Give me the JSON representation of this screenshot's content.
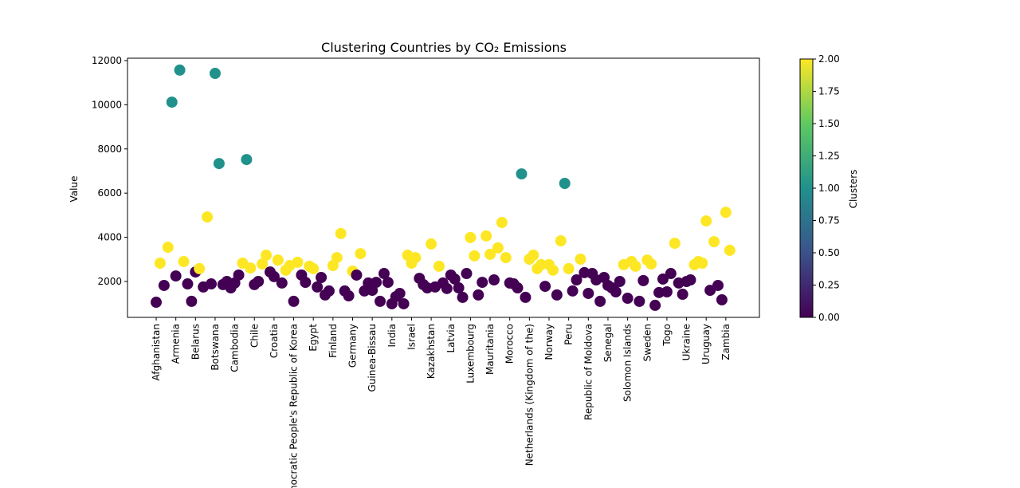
{
  "chart_data": {
    "type": "scatter",
    "title": "Clustering Countries by CO₂ Emissions",
    "y_label": "Value",
    "colorbar_label": "Clusters",
    "categories": [
      "Afghanistan",
      null,
      null,
      null,
      null,
      "Armenia",
      null,
      null,
      null,
      null,
      "Belarus",
      null,
      null,
      null,
      null,
      "Botswana",
      null,
      null,
      null,
      null,
      "Cambodia",
      null,
      null,
      null,
      null,
      "Chile",
      null,
      null,
      null,
      null,
      "Croatia",
      null,
      null,
      null,
      null,
      "Democratic People's Republic of Korea",
      null,
      null,
      null,
      null,
      "Egypt",
      null,
      null,
      null,
      null,
      "Finland",
      null,
      null,
      null,
      null,
      "Germany",
      null,
      null,
      null,
      null,
      "Guinea-Bissau",
      null,
      null,
      null,
      null,
      "India",
      null,
      null,
      null,
      null,
      "Israel",
      null,
      null,
      null,
      null,
      "Kazakhstan",
      null,
      null,
      null,
      null,
      "Latvia",
      null,
      null,
      null,
      null,
      "Luxembourg",
      null,
      null,
      null,
      null,
      "Mauritania",
      null,
      null,
      null,
      null,
      "Morocco",
      null,
      null,
      null,
      null,
      "Netherlands (Kingdom of the)",
      null,
      null,
      null,
      null,
      "Norway",
      null,
      null,
      null,
      null,
      "Peru",
      null,
      null,
      null,
      null,
      "Republic of Moldova",
      null,
      null,
      null,
      null,
      "Senegal",
      null,
      null,
      null,
      null,
      "Solomon Islands",
      null,
      null,
      null,
      null,
      "Sweden",
      null,
      null,
      null,
      null,
      "Togo",
      null,
      null,
      null,
      null,
      "Ukraine",
      null,
      null,
      null,
      null,
      "Uruguay",
      null,
      null,
      null,
      null,
      "Zambia",
      null
    ],
    "values": [
      1060,
      2830,
      1820,
      3550,
      10120,
      2250,
      11570,
      2900,
      1890,
      1100,
      2430,
      2580,
      1750,
      4920,
      1890,
      11420,
      7340,
      1860,
      2000,
      1710,
      1930,
      2290,
      2830,
      7520,
      2610,
      1860,
      2000,
      2790,
      3190,
      2430,
      2220,
      2970,
      1930,
      2510,
      2720,
      1100,
      2870,
      2290,
      1960,
      2690,
      2580,
      1750,
      2180,
      1390,
      1570,
      2720,
      3080,
      4170,
      1570,
      1350,
      2470,
      2290,
      3260,
      1570,
      1930,
      1600,
      1960,
      1100,
      2360,
      1960,
      990,
      1310,
      1460,
      990,
      3190,
      2830,
      3080,
      2140,
      1860,
      1710,
      3700,
      1750,
      2690,
      1930,
      1680,
      2290,
      2110,
      1710,
      1280,
      2360,
      3990,
      3160,
      1390,
      1960,
      4060,
      3230,
      2070,
      3520,
      4670,
      3080,
      1930,
      1890,
      1710,
      6870,
      1280,
      3010,
      3190,
      2580,
      2760,
      1780,
      2760,
      2510,
      1390,
      3840,
      6440,
      2580,
      1570,
      2070,
      3010,
      2400,
      1460,
      2360,
      2070,
      1100,
      2180,
      1820,
      1710,
      1530,
      2000,
      2760,
      1240,
      2900,
      2690,
      1100,
      2040,
      2970,
      2790,
      920,
      1500,
      2110,
      1530,
      2360,
      3730,
      1930,
      1420,
      2000,
      2070,
      2760,
      2900,
      2830,
      4740,
      1600,
      3800,
      1820,
      1170,
      5130,
      3410
    ],
    "clusters": [
      0,
      2,
      0,
      2,
      1,
      0,
      1,
      2,
      0,
      0,
      0,
      2,
      0,
      2,
      0,
      1,
      1,
      0,
      0,
      0,
      0,
      0,
      2,
      1,
      2,
      0,
      0,
      2,
      2,
      0,
      0,
      2,
      0,
      2,
      2,
      0,
      2,
      0,
      0,
      2,
      2,
      0,
      0,
      0,
      0,
      2,
      2,
      2,
      0,
      0,
      2,
      0,
      2,
      0,
      0,
      0,
      0,
      0,
      0,
      0,
      0,
      0,
      0,
      0,
      2,
      2,
      2,
      0,
      0,
      0,
      2,
      0,
      2,
      0,
      0,
      0,
      0,
      0,
      0,
      0,
      2,
      2,
      0,
      0,
      2,
      2,
      0,
      2,
      2,
      2,
      0,
      0,
      0,
      1,
      0,
      2,
      2,
      2,
      2,
      0,
      2,
      2,
      0,
      2,
      1,
      2,
      0,
      0,
      2,
      0,
      0,
      0,
      0,
      0,
      0,
      0,
      0,
      0,
      0,
      2,
      0,
      2,
      2,
      0,
      0,
      2,
      2,
      0,
      0,
      0,
      0,
      0,
      2,
      0,
      0,
      0,
      0,
      2,
      2,
      2,
      2,
      0,
      2,
      0,
      0,
      2,
      2
    ],
    "colorscale": [
      "#440154",
      "#3b528b",
      "#21918c",
      "#5ec962",
      "#fde725"
    ],
    "ylim": [
      375,
      12108
    ],
    "yticks": [
      2000,
      4000,
      6000,
      8000,
      10000,
      12000
    ],
    "clim": [
      0,
      2
    ],
    "cticks": [
      {
        "value": 0,
        "label": "0.00"
      },
      {
        "value": 0.25,
        "label": "0.25"
      },
      {
        "value": 0.5,
        "label": "0.50"
      },
      {
        "value": 0.75,
        "label": "0.75"
      },
      {
        "value": 1,
        "label": "1.00"
      },
      {
        "value": 1.25,
        "label": "1.25"
      },
      {
        "value": 1.5,
        "label": "1.50"
      },
      {
        "value": 1.75,
        "label": "1.75"
      },
      {
        "value": 2,
        "label": "2.00"
      }
    ]
  }
}
